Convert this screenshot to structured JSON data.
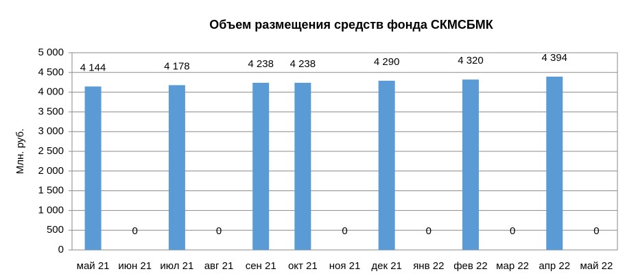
{
  "chart_data": {
    "type": "bar",
    "title": "Объем размещения средств фонда СКМСБМК",
    "y_label": "Млн. руб.",
    "categories": [
      "май 21",
      "июн 21",
      "июл 21",
      "авг 21",
      "сен 21",
      "окт 21",
      "ноя 21",
      "дек 21",
      "янв 22",
      "фев 22",
      "мар 22",
      "апр 22",
      "май 22"
    ],
    "values": [
      4144,
      0,
      4178,
      0,
      4238,
      4238,
      0,
      4290,
      0,
      4320,
      0,
      4394,
      0
    ],
    "value_labels": [
      "4 144",
      "0",
      "4 178",
      "0",
      "4 238",
      "4 238",
      "0",
      "4 290",
      "0",
      "4 320",
      "0",
      "4 394",
      "0"
    ],
    "color": "#5b9bd5",
    "ylim": [
      0,
      5000
    ],
    "yticks": [
      0,
      500,
      {
        "value": 1000,
        "label": "1 000"
      },
      {
        "value": 1500,
        "label": "1 500"
      },
      {
        "value": 2000,
        "label": "2 000"
      },
      {
        "value": 2500,
        "label": "2 500"
      },
      {
        "value": 3000,
        "label": "3 000"
      },
      {
        "value": 3500,
        "label": "3 500"
      },
      {
        "value": 4000,
        "label": "4 000"
      },
      {
        "value": 4500,
        "label": "4 500"
      },
      {
        "value": 5000,
        "label": "5 000"
      }
    ],
    "grid": true
  }
}
